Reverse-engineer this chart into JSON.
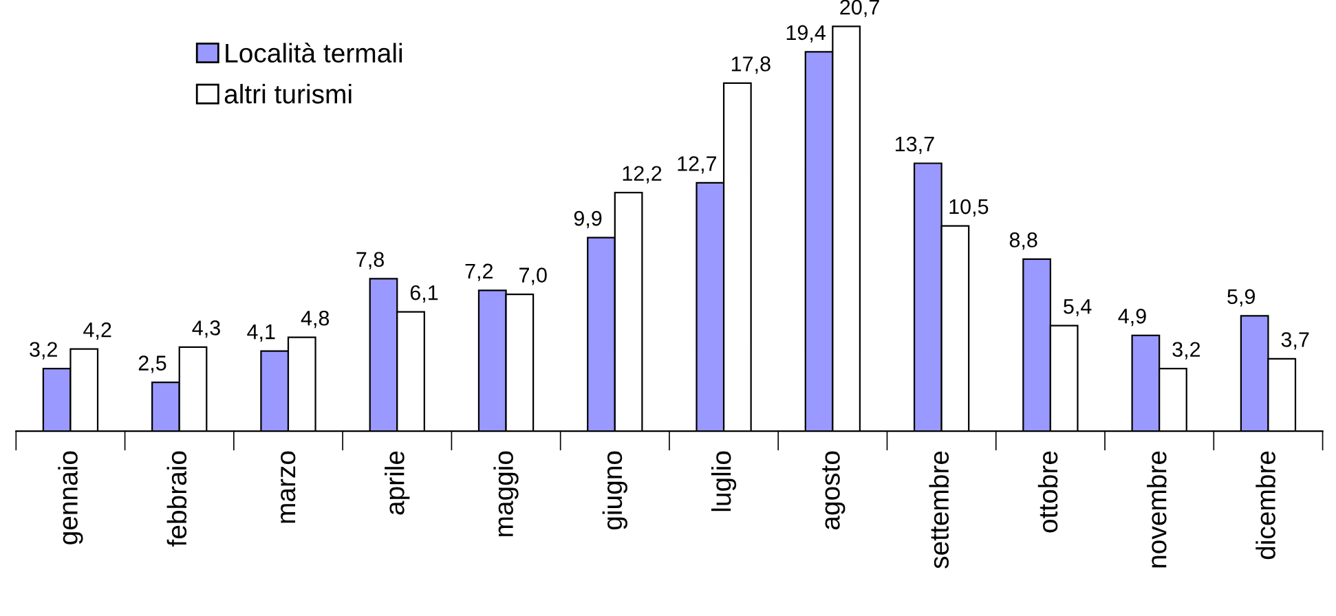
{
  "chart_data": {
    "type": "bar",
    "categories": [
      "gennaio",
      "febbraio",
      "marzo",
      "aprile",
      "maggio",
      "giugno",
      "luglio",
      "agosto",
      "settembre",
      "ottobre",
      "novembre",
      "dicembre"
    ],
    "series": [
      {
        "name": "Località termali",
        "color": "#9999ff",
        "values": [
          3.2,
          2.5,
          4.1,
          7.8,
          7.2,
          9.9,
          12.7,
          19.4,
          13.7,
          8.8,
          4.9,
          5.9
        ],
        "value_labels": [
          "3,2",
          "2,5",
          "4,1",
          "7,8",
          "7,2",
          "9,9",
          "12,7",
          "19,4",
          "13,7",
          "8,8",
          "4,9",
          "5,9"
        ]
      },
      {
        "name": "altri turismi",
        "color": "#ffffff",
        "values": [
          4.2,
          4.3,
          4.8,
          6.1,
          7.0,
          12.2,
          17.8,
          20.7,
          10.5,
          5.4,
          3.2,
          3.7
        ],
        "value_labels": [
          "4,2",
          "4,3",
          "4,8",
          "6,1",
          "7,0",
          "12,2",
          "17,8",
          "20,7",
          "10,5",
          "5,4",
          "3,2",
          "3,7"
        ]
      }
    ],
    "legend": "top left",
    "grid": false,
    "tick_labels": "x"
  }
}
